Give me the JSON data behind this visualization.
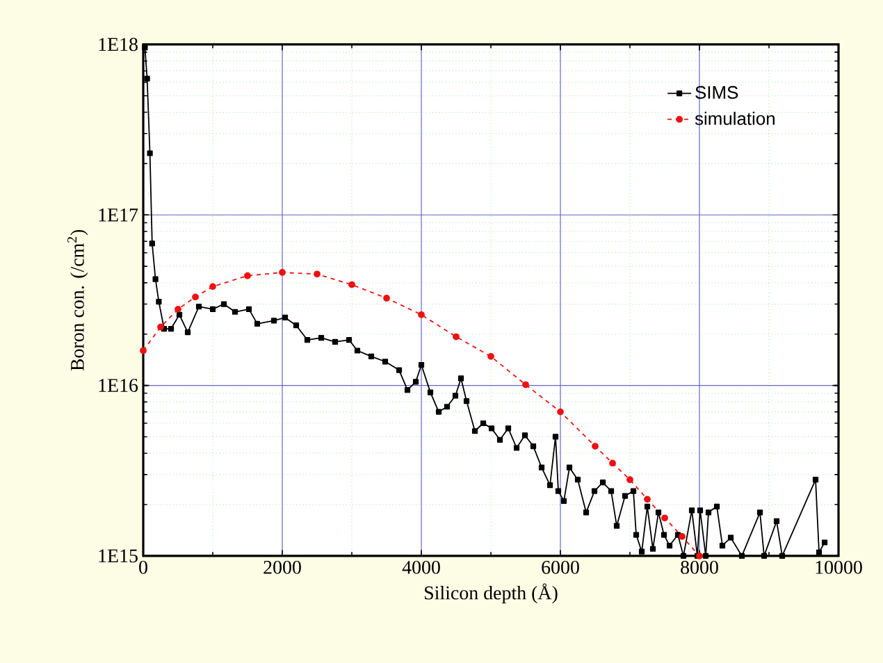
{
  "chart_data": {
    "type": "line",
    "xlabel": "Silicon depth (Å)",
    "ylabel": "Boron con. (/cm$^{2}$)",
    "xlim": [
      0,
      10000
    ],
    "xticks": [
      0,
      2000,
      4000,
      6000,
      8000,
      10000
    ],
    "ylim": [
      1000000000000000.0,
      1e+18
    ],
    "yticks": [
      {
        "value": 1000000000000000.0,
        "label": "1E15"
      },
      {
        "value": 1e+16,
        "label": "1E16"
      },
      {
        "value": 1e+17,
        "label": "1E17"
      },
      {
        "value": 1e+18,
        "label": "1E18"
      }
    ],
    "log": "y",
    "grid": true,
    "legend": "top right",
    "series": [
      {
        "name": "SIMS",
        "color": "#000000",
        "marker": "square",
        "line_style": "solid",
        "x": [
          24,
          56,
          96,
          128,
          176,
          224,
          300,
          400,
          520,
          640,
          800,
          1000,
          1160,
          1320,
          1520,
          1640,
          1880,
          2040,
          2200,
          2360,
          2560,
          2760,
          2960,
          3080,
          3280,
          3480,
          3680,
          3800,
          3920,
          4000,
          4130,
          4250,
          4370,
          4490,
          4570,
          4650,
          4770,
          4890,
          5010,
          5130,
          5250,
          5370,
          5490,
          5610,
          5730,
          5850,
          5930,
          5970,
          6050,
          6130,
          6250,
          6370,
          6490,
          6610,
          6730,
          6810,
          6930,
          7050,
          7090,
          7170,
          7250,
          7330,
          7410,
          7490,
          7570,
          7690,
          7770,
          7890,
          7970,
          8010,
          8090,
          8130,
          8250,
          8330,
          8450,
          8610,
          8870,
          8930,
          9110,
          9190,
          9670,
          9720,
          9800
        ],
        "values": [
          9.6e+17,
          6.3e+17,
          2.3e+17,
          6.8e+16,
          4.2e+16,
          3.1e+16,
          2.15e+16,
          2.15e+16,
          2.6e+16,
          2.05e+16,
          2.9e+16,
          2.8e+16,
          3e+16,
          2.7e+16,
          2.8e+16,
          2.3e+16,
          2.4e+16,
          2.5e+16,
          2.25e+16,
          1.85e+16,
          1.9e+16,
          1.8e+16,
          1.85e+16,
          1.6e+16,
          1.48e+16,
          1.38e+16,
          1.23e+16,
          9400000000000000.0,
          1.05e+16,
          1.32e+16,
          9100000000000000.0,
          7000000000000000.0,
          7500000000000000.0,
          8700000000000000.0,
          1.1e+16,
          8100000000000000.0,
          5400000000000000.0,
          6000000000000000.0,
          5600000000000000.0,
          4800000000000000.0,
          5600000000000000.0,
          4300000000000000.0,
          5100000000000000.0,
          4400000000000000.0,
          3300000000000000.0,
          2600000000000000.0,
          5000000000000000.0,
          2400000000000000.0,
          2100000000000000.0,
          3300000000000000.0,
          2800000000000000.0,
          1800000000000000.0,
          2400000000000000.0,
          2700000000000000.0,
          2400000000000000.0,
          1500000000000000.0,
          2250000000000000.0,
          2400000000000000.0,
          1330000000000000.0,
          1060000000000000.0,
          1950000000000000.0,
          1100000000000000.0,
          1800000000000000.0,
          1330000000000000.0,
          1150000000000000.0,
          1330000000000000.0,
          1000000000000000.0,
          1850000000000000.0,
          1000000000000000.0,
          1850000000000000.0,
          1000000000000000.0,
          1800000000000000.0,
          1950000000000000.0,
          1150000000000000.0,
          1280000000000000.0,
          1000000000000000.0,
          1800000000000000.0,
          1000000000000000.0,
          1600000000000000.0,
          1000000000000000.0,
          2800000000000000.0,
          1050000000000000.0,
          1200000000000000.0
        ]
      },
      {
        "name": "simulation",
        "color": "#ee1111",
        "marker": "circle",
        "line_style": "dashed",
        "x": [
          0,
          250,
          500,
          750,
          1000,
          1500,
          2000,
          2500,
          3000,
          3500,
          4000,
          4500,
          5000,
          5500,
          6000,
          6500,
          6750,
          7000,
          7250,
          7500,
          7750,
          8000
        ],
        "values": [
          1.6e+16,
          2.2e+16,
          2.8e+16,
          3.3e+16,
          3.8e+16,
          4.4e+16,
          4.6e+16,
          4.5e+16,
          3.9e+16,
          3.25e+16,
          2.6e+16,
          1.93e+16,
          1.48e+16,
          1.01e+16,
          7000000000000000.0,
          4400000000000000.0,
          3500000000000000.0,
          2800000000000000.0,
          2150000000000000.0,
          1670000000000000.0,
          1300000000000000.0,
          1000000000000000.0
        ]
      }
    ]
  }
}
